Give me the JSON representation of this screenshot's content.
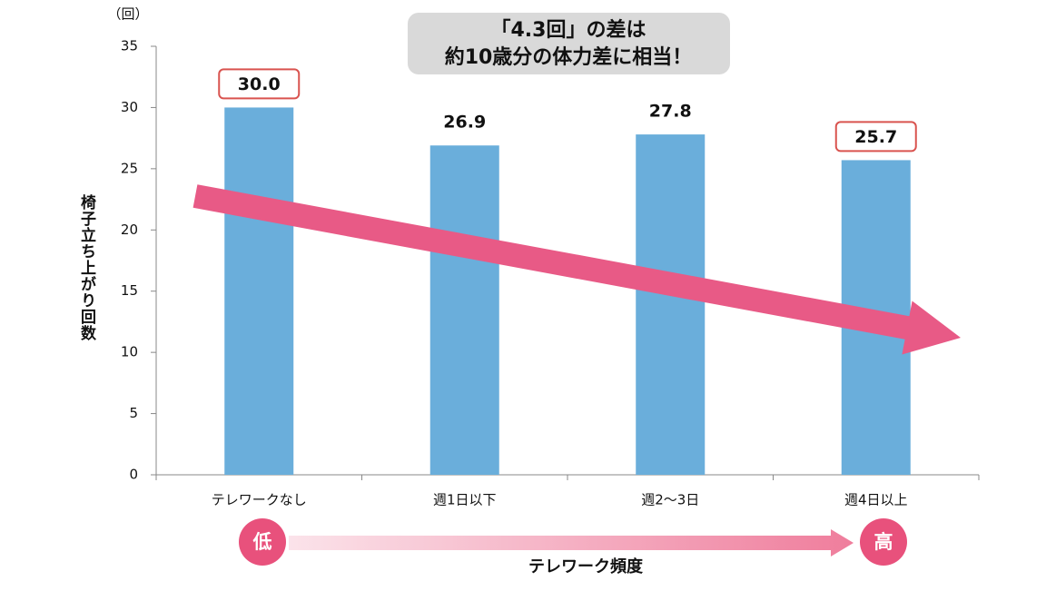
{
  "chart_data": {
    "type": "bar",
    "y_unit": "（回）",
    "y_label": "椅子立ち上がり回数",
    "categories": [
      "テレワークなし",
      "週1日以下",
      "週2～3日",
      "週4日以上"
    ],
    "values": [
      30.0,
      26.9,
      27.8,
      25.7
    ],
    "value_labels": [
      "30.0",
      "26.9",
      "27.8",
      "25.7"
    ],
    "highlight": [
      0,
      3
    ],
    "color": "#6aaedb",
    "ylim": [
      0,
      35
    ],
    "yticks": [
      0,
      5,
      10,
      15,
      20,
      25,
      30,
      35
    ],
    "annotation": [
      "「4.3回」の差は",
      "約10歳分の体力差に相当！"
    ],
    "x_label": "テレワーク頻度",
    "frequency_low": "低",
    "frequency_high": "高"
  }
}
